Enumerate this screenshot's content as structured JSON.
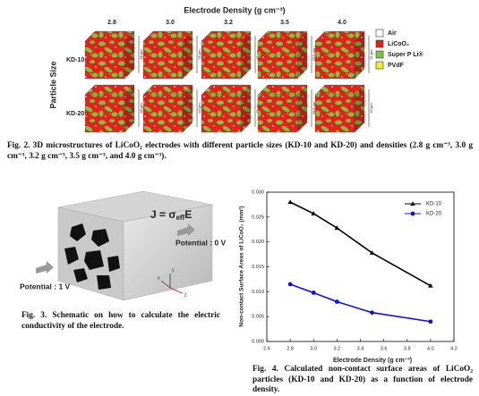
{
  "fig2": {
    "title": "Electrode Density (g cm⁻³)",
    "columns": [
      "2.8",
      "3.0",
      "3.2",
      "3.5",
      "4.0"
    ],
    "row_axis": "Particle Size",
    "rows": [
      {
        "label": "KD-10",
        "thickness": [
          "48 μm",
          "45 μm",
          "41 μm",
          "33.6 μm",
          "32 μm"
        ]
      },
      {
        "label": "KD-20",
        "thickness": [
          "48 μm",
          "43 μm",
          "41 μm",
          "33.6 μm",
          "32 μm"
        ]
      }
    ],
    "legend": [
      {
        "label": "Air",
        "color": "#ffffff"
      },
      {
        "label": "LiCoO₂",
        "color": "#e2231a"
      },
      {
        "label": "Super P Li®",
        "color": "#7cc243"
      },
      {
        "label": "PVdF",
        "color": "#f4ec2c"
      }
    ],
    "caption": "Fig. 2. 3D microstructures of LiCoO₂ electrodes with different particle sizes (KD-10 and KD-20) and densities (2.8 g cm⁻³, 3.0 g cm⁻³, 3.2 g cm⁻³, 3.5 g cm⁻³, and 4.0 g cm⁻³)."
  },
  "fig3": {
    "equation_left": "J = σ",
    "equation_sub": "eff",
    "equation_right": "E",
    "potential_right": "Potential : 0 V",
    "potential_left": "Potential : 1 V",
    "axes": [
      "x",
      "y",
      "z"
    ],
    "caption": "Fig. 3. Schematic on how to calculate the electric conductivity of the electrode."
  },
  "fig4": {
    "type": "line",
    "xlabel": "Electrode Density (g cm⁻³)",
    "ylabel": "Non-contact Surface Areas of LiCoO₂ (mm²)",
    "x": [
      2.8,
      3.0,
      3.2,
      3.5,
      4.0
    ],
    "series": [
      {
        "name": "KD-10",
        "color": "#000000",
        "marker": "triangle",
        "values": [
          0.028,
          0.0257,
          0.0228,
          0.0178,
          0.0112
        ]
      },
      {
        "name": "KD-20",
        "color": "#1010e0",
        "marker": "circle",
        "values": [
          0.0115,
          0.0098,
          0.008,
          0.0058,
          0.004
        ]
      }
    ],
    "xlim": [
      2.6,
      4.2
    ],
    "xticks": [
      {
        "value": 2.6,
        "label": "2.6"
      },
      {
        "value": 2.8,
        "label": "2.8"
      },
      {
        "value": 3,
        "label": "3.0"
      },
      {
        "value": 3.2,
        "label": "3.2"
      },
      {
        "value": 3.4,
        "label": "3.4"
      },
      {
        "value": 3.6,
        "label": "3.6"
      },
      {
        "value": 3.8,
        "label": "3.8"
      },
      {
        "value": 4,
        "label": "4.0"
      },
      {
        "value": 4.2,
        "label": "4.2"
      }
    ],
    "ylim": [
      0,
      0.03
    ],
    "yticks": [
      {
        "value": 0,
        "label": "0.000"
      },
      {
        "value": 0.005,
        "label": "0.005"
      },
      {
        "value": 0.01,
        "label": "0.010"
      },
      {
        "value": 0.015,
        "label": "0.015"
      },
      {
        "value": 0.02,
        "label": "0.020"
      },
      {
        "value": 0.025,
        "label": "0.025"
      },
      {
        "value": 0.03,
        "label": "0.030"
      }
    ],
    "legend": "top-right",
    "caption": "Fig. 4. Calculated non-contact surface areas of LiCoO₂ particles (KD-10 and KD-20) as a function of electrode density."
  }
}
